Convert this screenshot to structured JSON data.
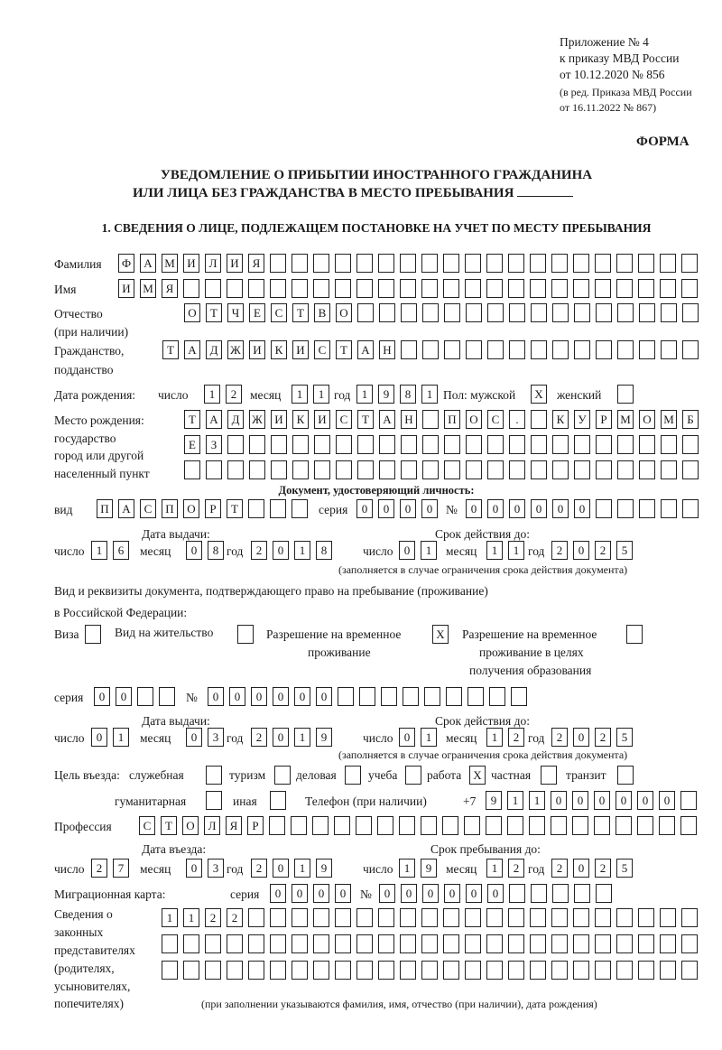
{
  "header": {
    "appendix": "Приложение № 4",
    "order": "к приказу МВД России",
    "order_date": "от 10.12.2020 № 856",
    "edition1": "(в ред. Приказа МВД России",
    "edition2": "от 16.11.2022 № 867)",
    "form_label": "ФОРМА",
    "title1": "УВЕДОМЛЕНИЕ О ПРИБЫТИИ ИНОСТРАННОГО ГРАЖДАНИНА",
    "title2": "ИЛИ ЛИЦА БЕЗ ГРАЖДАНСТВА В МЕСТО ПРЕБЫВАНИЯ",
    "section1": "1. СВЕДЕНИЯ О ЛИЦЕ, ПОДЛЕЖАЩЕМ ПОСТАНОВКЕ НА УЧЕТ ПО МЕСТУ ПРЕБЫВАНИЯ"
  },
  "person": {
    "surname_label": "Фамилия",
    "surname": "ФАМИЛИЯ",
    "name_label": "Имя",
    "name": "ИМЯ",
    "patronymic_label1": "Отчество",
    "patronymic_label2": "(при наличии)",
    "patronymic": "ОТЧЕСТВО",
    "citizenship_label1": "Гражданство,",
    "citizenship_label2": "подданство",
    "citizenship": "ТАДЖИКИСТАН",
    "birth_label": "Дата рождения:",
    "day_label": "число",
    "month_label": "месяц",
    "year_label": "год",
    "birth_day": "12",
    "birth_month": "11",
    "birth_year": "1981",
    "sex_label": "Пол: мужской",
    "female_label": "женский",
    "male_mark": "X",
    "female_mark": "",
    "birthplace_label1": "Место рождения:",
    "birthplace_label2": "государство",
    "birthplace_label3": "город или другой",
    "birthplace_label4": "населенный пункт",
    "birthplace1": "ТАДЖИКИСТАН ПОС. КУРМОМБ",
    "birthplace2": "ЕЗ",
    "birthplace3": ""
  },
  "id_doc": {
    "heading": "Документ, удостоверяющий личность:",
    "type_label": "вид",
    "type": "ПАСПОРТ",
    "series_label": "серия",
    "series": "0000",
    "number_label": "№",
    "number": "000000",
    "issue_label": "Дата выдачи:",
    "valid_label": "Срок действия до:",
    "issue_day": "16",
    "issue_month": "08",
    "issue_year": "2018",
    "valid_day": "01",
    "valid_month": "11",
    "valid_year": "2025",
    "note": "(заполняется в случае ограничения срока действия документа)"
  },
  "stay_doc": {
    "heading1": "Вид и реквизиты документа, подтверждающего право на пребывание (проживание)",
    "heading2": "в Российской Федерации:",
    "visa_label": "Виза",
    "visa": "",
    "residence_label": "Вид на жительство",
    "residence": "",
    "temp_label1": "Разрешение на временное",
    "temp_label2": "проживание",
    "temp": "X",
    "edu_label1": "Разрешение на временное",
    "edu_label2": "проживание в целях",
    "edu_label3": "получения образования",
    "edu": "",
    "series_label": "серия",
    "series": "00",
    "number_label": "№",
    "number": "000000",
    "issue_label": "Дата выдачи:",
    "valid_label": "Срок действия до:",
    "issue_day": "01",
    "issue_month": "03",
    "issue_year": "2019",
    "valid_day": "01",
    "valid_month": "12",
    "valid_year": "2025",
    "note": "(заполняется в случае ограничения срока действия документа)"
  },
  "purpose": {
    "label": "Цель въезда:",
    "options": [
      {
        "label": "служебная",
        "mark": ""
      },
      {
        "label": "туризм",
        "mark": ""
      },
      {
        "label": "деловая",
        "mark": ""
      },
      {
        "label": "учеба",
        "mark": ""
      },
      {
        "label": "работа",
        "mark": "X"
      },
      {
        "label": "частная",
        "mark": ""
      },
      {
        "label": "транзит",
        "mark": ""
      },
      {
        "label": "гуманитарная",
        "mark": ""
      },
      {
        "label": "иная",
        "mark": ""
      }
    ],
    "phone_label": "Телефон (при наличии)",
    "phone_prefix": "+7",
    "phone": "911000000"
  },
  "profession": {
    "label": "Профессия",
    "value": "СТОЛЯР"
  },
  "entry": {
    "entry_label": "Дата въезда:",
    "stay_label": "Срок пребывания до:",
    "entry_day": "27",
    "entry_month": "03",
    "entry_year": "2019",
    "stay_day": "19",
    "stay_month": "12",
    "stay_year": "2025"
  },
  "migration_card": {
    "label": "Миграционная карта:",
    "series_label": "серия",
    "series": "0000",
    "number_label": "№",
    "number": "000000"
  },
  "representatives": {
    "label1": "Сведения о",
    "label2": "законных",
    "label3": "представителях",
    "label4": "(родителях,",
    "label5": "усыновителях,",
    "label6": "попечителях)",
    "row1": "1122",
    "row2": "",
    "row3": "",
    "note": "(при заполнении указываются фамилия, имя, отчество (при наличии), дата рождения)"
  }
}
